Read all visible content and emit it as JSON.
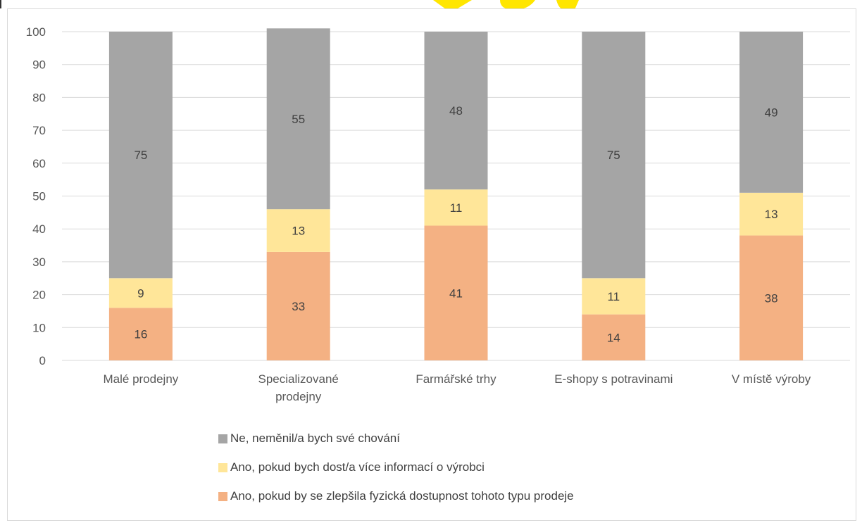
{
  "chart_data": {
    "type": "bar",
    "stacked": true,
    "categories": [
      [
        "Malé prodejny"
      ],
      [
        "Specializované",
        "prodejny"
      ],
      [
        "Farmářské trhy"
      ],
      [
        "E-shopy s potravinami"
      ],
      [
        "V místě výroby"
      ]
    ],
    "series": [
      {
        "name": "Ano, pokud by se zlepšila fyzická dostupnost tohoto typu prodeje",
        "color": "#f4b183",
        "values": [
          16,
          33,
          41,
          14,
          38
        ]
      },
      {
        "name": "Ano, pokud bych dost/a více informací o výrobci",
        "color": "#ffe699",
        "values": [
          9,
          13,
          11,
          11,
          13
        ]
      },
      {
        "name": "Ne, neměnil/a bych své chování",
        "color": "#a5a5a5",
        "values": [
          75,
          55,
          48,
          75,
          49
        ]
      }
    ],
    "ylim": [
      0,
      100
    ],
    "yticks": [
      0,
      10,
      20,
      30,
      40,
      50,
      60,
      70,
      80,
      90,
      100
    ],
    "grid": true,
    "legend_position": "bottom",
    "legend_order": [
      2,
      1,
      0
    ]
  }
}
